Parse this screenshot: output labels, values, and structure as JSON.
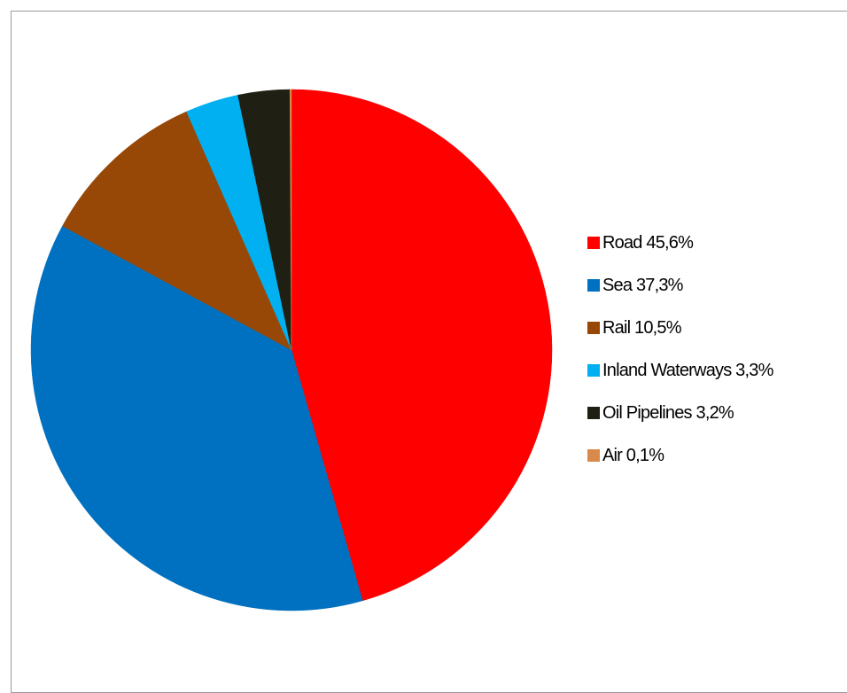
{
  "chart_data": {
    "type": "pie",
    "title": "",
    "legend_position": "right",
    "slices": [
      {
        "label": "Road",
        "value": 45.6,
        "legend_text": "Road 45,6%",
        "color": "#ff0000"
      },
      {
        "label": "Sea",
        "value": 37.3,
        "legend_text": "Sea 37,3%",
        "color": "#0070c0"
      },
      {
        "label": "Rail",
        "value": 10.5,
        "legend_text": "Rail 10,5%",
        "color": "#974806"
      },
      {
        "label": "Inland Waterways",
        "value": 3.3,
        "legend_text": "Inland Waterways 3,3%",
        "color": "#00b0f0"
      },
      {
        "label": "Oil Pipelines",
        "value": 3.2,
        "legend_text": "Oil Pipelines 3,2%",
        "color": "#1f1f14"
      },
      {
        "label": "Air",
        "value": 0.1,
        "legend_text": "Air 0,1%",
        "color": "#d9894a"
      }
    ]
  }
}
